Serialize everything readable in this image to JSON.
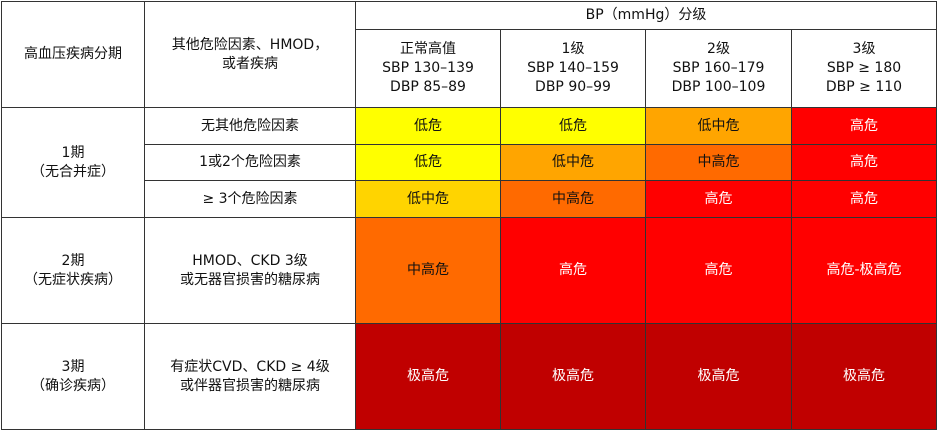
{
  "header": {
    "stage_col": "高血压疾病分期",
    "factors_col": "其他危险因素、HMOD，\n或者疾病",
    "bp_group": "BP（mmHg）分级",
    "bp_grades": [
      "正常高值\nSBP 130–139\nDBP 85–89",
      "1级\nSBP 140–159\nDBP 90–99",
      "2级\nSBP 160–179\nDBP 100–109",
      "3级\nSBP ≥ 180\nDBP ≥ 110"
    ]
  },
  "stages": [
    {
      "label": "1期\n（无合并症）",
      "rows": [
        {
          "factor": "无其他危险因素",
          "risks": [
            "低危",
            "低危",
            "低中危",
            "高危"
          ]
        },
        {
          "factor": "1或2个危险因素",
          "risks": [
            "低危",
            "低中危",
            "中高危",
            "高危"
          ]
        },
        {
          "factor": "≥ 3个危险因素",
          "risks": [
            "低中危",
            "中高危",
            "高危",
            "高危"
          ]
        }
      ]
    },
    {
      "label": "2期\n（无症状疾病）",
      "rows": [
        {
          "factor": "HMOD、CKD 3级\n或无器官损害的糖尿病",
          "risks": [
            "中高危",
            "高危",
            "高危",
            "高危-极高危"
          ]
        }
      ]
    },
    {
      "label": "3期\n（确诊疾病）",
      "rows": [
        {
          "factor": "有症状CVD、CKD ≥ 4级\n或伴器官损害的糖尿病",
          "risks": [
            "极高危",
            "极高危",
            "极高危",
            "极高危"
          ]
        }
      ]
    }
  ],
  "colors": {
    "yellow": "#ffff00",
    "yellow_orange": "#ffd400",
    "orange": "#ffa500",
    "dark_orange": "#ff6a00",
    "red": "#ff0000",
    "dark_red": "#c00000"
  }
}
